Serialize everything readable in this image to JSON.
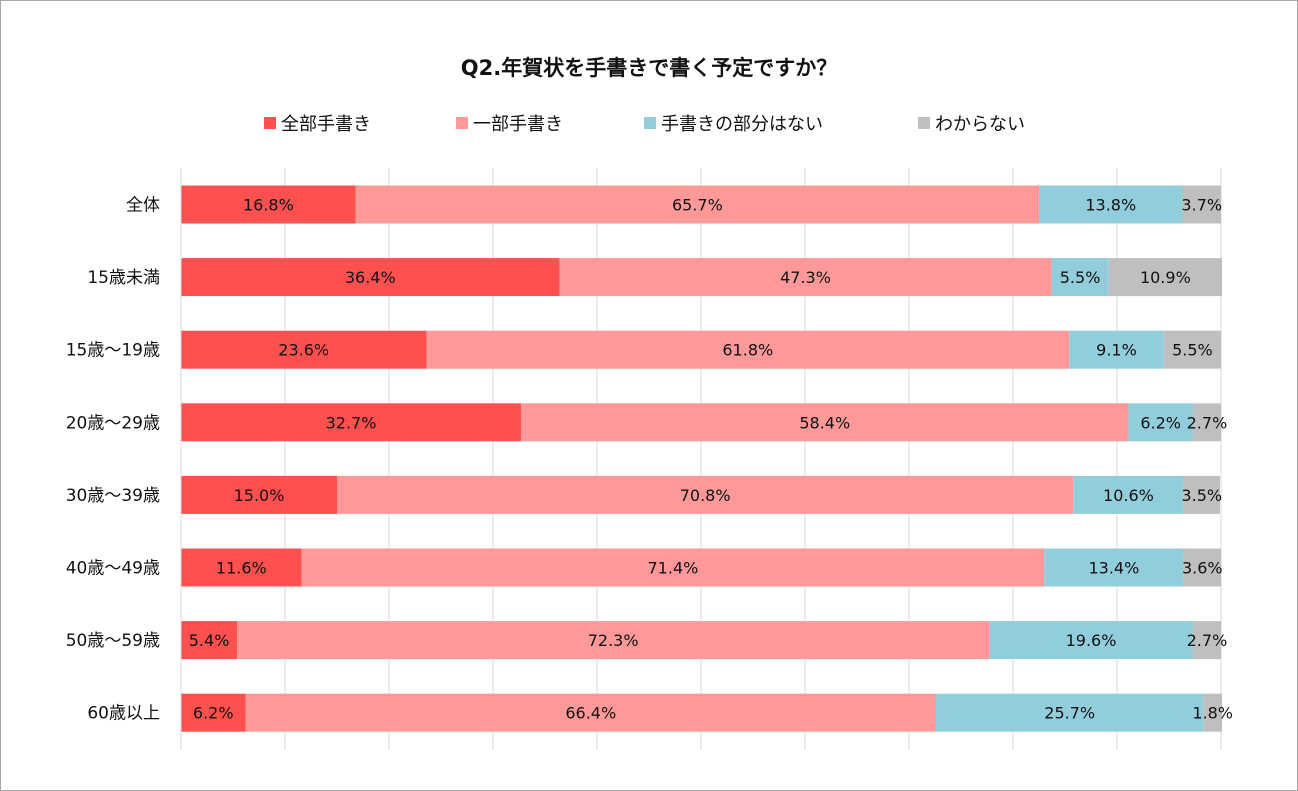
{
  "chart_data": {
    "type": "bar",
    "orientation": "horizontal",
    "stacked": true,
    "title": "Q2.年賀状を手書きで書く予定ですか？",
    "categories": [
      "全体",
      "15歳未満",
      "15歳～19歳",
      "20歳～29歳",
      "30歳～39歳",
      "40歳～49歳",
      "50歳～59歳",
      "60歳以上"
    ],
    "series": [
      {
        "name": "全部手書き",
        "color": "#ff5050",
        "values": [
          16.8,
          36.4,
          23.6,
          32.7,
          15.0,
          11.6,
          5.4,
          6.2
        ],
        "labels": [
          "16.8%",
          "36.4%",
          "23.6%",
          "32.7%",
          "15.0%",
          "11.6%",
          "5.4%",
          "6.2%"
        ]
      },
      {
        "name": "一部手書き",
        "color": "#ff9999",
        "values": [
          65.7,
          47.3,
          61.8,
          58.4,
          70.8,
          71.4,
          72.3,
          66.4
        ],
        "labels": [
          "65.7%",
          "47.3%",
          "61.8%",
          "58.4%",
          "70.8%",
          "71.4%",
          "72.3%",
          "66.4%"
        ]
      },
      {
        "name": "手書きの部分はない",
        "color": "#92cddc",
        "values": [
          13.8,
          5.5,
          9.1,
          6.2,
          10.6,
          13.4,
          19.6,
          25.7
        ],
        "labels": [
          "13.8%",
          "5.5%",
          "9.1%",
          "6.2%",
          "10.6%",
          "13.4%",
          "19.6%",
          "25.7%"
        ]
      },
      {
        "name": "わからない",
        "color": "#bfbfbf",
        "values": [
          3.7,
          10.9,
          5.5,
          2.7,
          3.5,
          3.6,
          2.7,
          1.8
        ],
        "labels": [
          "3.7%",
          "10.9%",
          "5.5%",
          "2.7%",
          "3.5%",
          "3.6%",
          "2.7%",
          "1.8%"
        ]
      }
    ],
    "xlim": [
      0,
      100
    ],
    "grid": true,
    "legend_position": "top"
  }
}
